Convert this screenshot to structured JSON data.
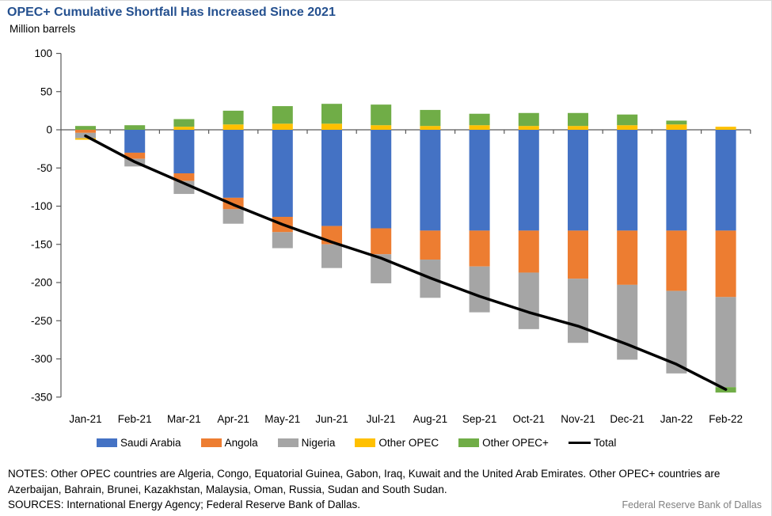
{
  "header": {
    "title": "OPEC+ Cumulative Shortfall Has Increased Since 2021",
    "units_label": "Million barrels"
  },
  "chart_data": {
    "type": "bar",
    "stacked": true,
    "title": "OPEC+ Cumulative Shortfall Has Increased Since 2021",
    "ylabel": "Million barrels",
    "xlabel": "",
    "ylim": [
      -350,
      100
    ],
    "ytick_step": 50,
    "grid": false,
    "legend_position": "bottom",
    "categories": [
      "Jan-21",
      "Feb-21",
      "Mar-21",
      "Apr-21",
      "May-21",
      "Jun-21",
      "Jul-21",
      "Aug-21",
      "Sep-21",
      "Oct-21",
      "Nov-21",
      "Dec-21",
      "Jan-22",
      "Feb-22"
    ],
    "series": [
      {
        "name": "Saudi Arabia",
        "color": "#4472C4",
        "values": [
          0,
          -30,
          -57,
          -89,
          -114,
          -126,
          -129,
          -132,
          -132,
          -132,
          -132,
          -132,
          -132,
          -132
        ]
      },
      {
        "name": "Angola",
        "color": "#ED7D31",
        "values": [
          -4,
          -8,
          -10,
          -15,
          -20,
          -24,
          -34,
          -38,
          -47,
          -55,
          -63,
          -71,
          -79,
          -87
        ]
      },
      {
        "name": "Nigeria",
        "color": "#A5A5A5",
        "values": [
          -7,
          -10,
          -17,
          -19,
          -21,
          -31,
          -38,
          -50,
          -60,
          -74,
          -84,
          -98,
          -108,
          -118
        ]
      },
      {
        "name": "Other OPEC",
        "color": "#FFC000",
        "values": [
          -2,
          0,
          4,
          7,
          8,
          8,
          6,
          5,
          6,
          5,
          5,
          6,
          7,
          4
        ]
      },
      {
        "name": "Other OPEC+",
        "color": "#70AD47",
        "values": [
          5,
          6,
          10,
          18,
          23,
          26,
          27,
          21,
          15,
          17,
          17,
          14,
          5,
          -7
        ]
      }
    ],
    "line_series": {
      "name": "Total",
      "color": "#000000",
      "values": [
        -8,
        -42,
        -70,
        -98,
        -124,
        -147,
        -168,
        -194,
        -218,
        -239,
        -257,
        -281,
        -307,
        -340
      ]
    },
    "ytick_labels": [
      "100",
      "50",
      "0",
      "-50",
      "-100",
      "-150",
      "-200",
      "-250",
      "-300",
      "-350"
    ]
  },
  "legend": {
    "items": [
      {
        "label": "Saudi Arabia",
        "color": "#4472C4",
        "swatch": "box"
      },
      {
        "label": "Angola",
        "color": "#ED7D31",
        "swatch": "box"
      },
      {
        "label": "Nigeria",
        "color": "#A5A5A5",
        "swatch": "box"
      },
      {
        "label": "Other OPEC",
        "color": "#FFC000",
        "swatch": "box"
      },
      {
        "label": "Other OPEC+",
        "color": "#70AD47",
        "swatch": "box"
      },
      {
        "label": "Total",
        "color": "#000000",
        "swatch": "line"
      }
    ]
  },
  "notes": {
    "text": "NOTES: Other OPEC countries are Algeria, Congo, Equatorial Guinea, Gabon, Iraq, Kuwait and the United Arab Emirates. Other OPEC+ countries are Azerbaijan, Bahrain, Brunei, Kazakhstan, Malaysia, Oman, Russia, Sudan and South Sudan."
  },
  "sources": {
    "text": "SOURCES: International Energy Agency; Federal Reserve Bank of Dallas."
  },
  "footer": {
    "text": "Federal Reserve Bank of Dallas"
  }
}
